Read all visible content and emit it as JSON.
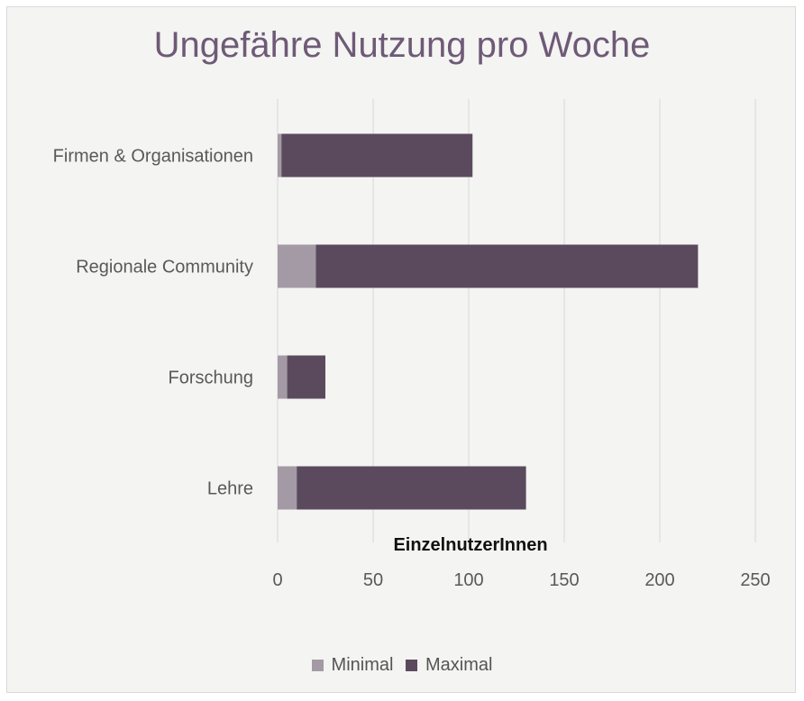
{
  "chart_data": {
    "type": "bar",
    "orientation": "horizontal",
    "stacked": true,
    "title": "Ungefähre Nutzung pro Woche",
    "xlabel": "EinzelnutzerInnen",
    "ylabel": "",
    "xlim": [
      0,
      250
    ],
    "x_ticks": [
      0,
      50,
      100,
      150,
      200,
      250
    ],
    "x_tick_labels": [
      "0",
      "50",
      "100",
      "150",
      "200",
      "250"
    ],
    "grid": "vertical",
    "legend_position": "bottom",
    "categories": [
      "Firmen & Organisationen",
      "Regionale Community",
      "Forschung",
      "Lehre"
    ],
    "series": [
      {
        "name": "Minimal",
        "color": "#a49aa5",
        "values": [
          2,
          20,
          5,
          10
        ]
      },
      {
        "name": "Maximal",
        "color": "#5b4a5e",
        "values": [
          100,
          200,
          20,
          120
        ]
      }
    ]
  }
}
